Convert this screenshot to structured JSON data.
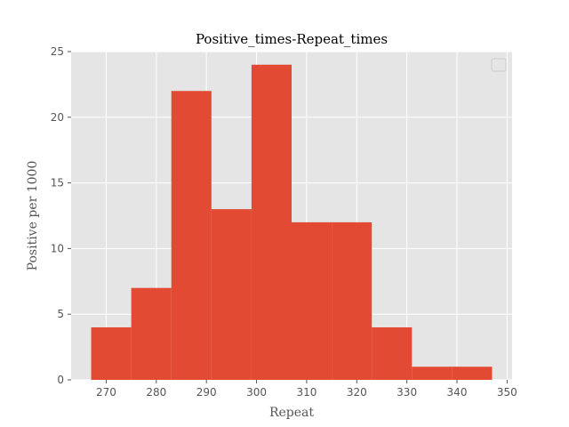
{
  "chart_data": {
    "type": "bar",
    "subtype": "histogram",
    "title": "Positive_times-Repeat_times",
    "xlabel": "Repeat",
    "ylabel": "Positive per 1000",
    "bins": [
      {
        "x0": 267,
        "x1": 275,
        "value": 4
      },
      {
        "x0": 275,
        "x1": 283,
        "value": 7
      },
      {
        "x0": 283,
        "x1": 291,
        "value": 22
      },
      {
        "x0": 291,
        "x1": 299,
        "value": 13
      },
      {
        "x0": 299,
        "x1": 307,
        "value": 24
      },
      {
        "x0": 307,
        "x1": 315,
        "value": 12
      },
      {
        "x0": 315,
        "x1": 323,
        "value": 12
      },
      {
        "x0": 323,
        "x1": 331,
        "value": 4
      },
      {
        "x0": 331,
        "x1": 339,
        "value": 1
      },
      {
        "x0": 339,
        "x1": 347,
        "value": 1
      }
    ],
    "xlim": [
      263,
      351
    ],
    "ylim": [
      0,
      25
    ],
    "xticks": [
      270,
      280,
      290,
      300,
      310,
      320,
      330,
      340,
      350
    ],
    "yticks": [
      0,
      5,
      10,
      15,
      20,
      25
    ],
    "grid": true,
    "legend": "top-right (empty)",
    "colors": {
      "bar": "#E24A33",
      "background": "#E5E5E5",
      "grid": "#FFFFFF"
    }
  }
}
